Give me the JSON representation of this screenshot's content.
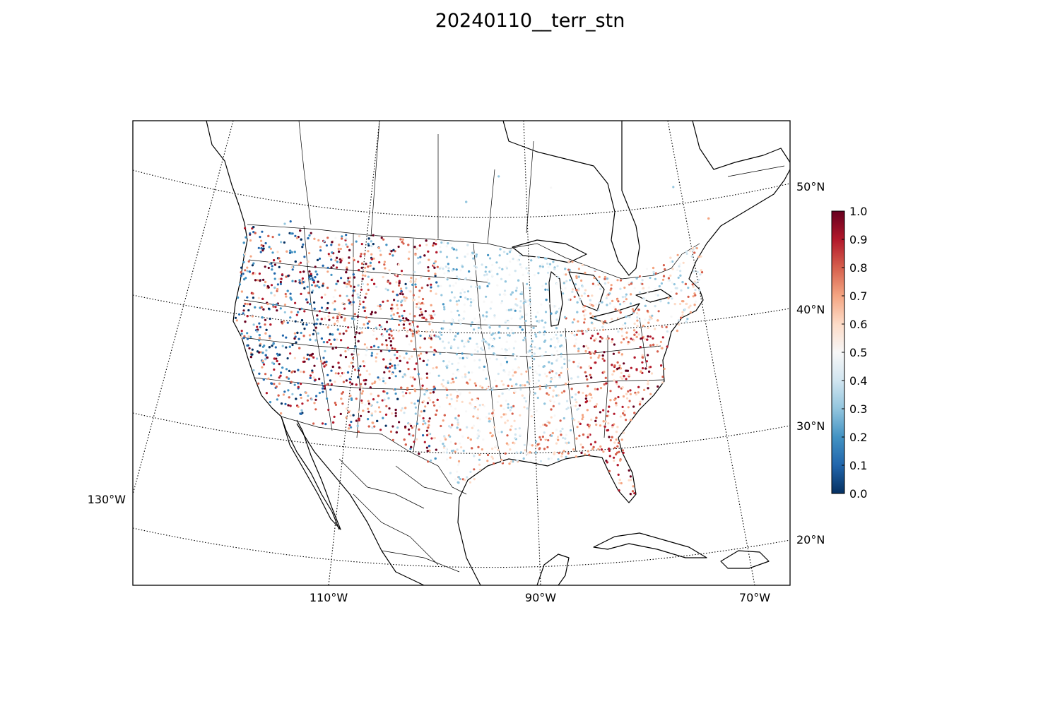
{
  "title": "20240110__terr_stn",
  "lat_labels": [
    "50°N",
    "40°N",
    "30°N",
    "20°N"
  ],
  "lon_labels": [
    "110°W",
    "90°W",
    "70°W"
  ],
  "west_label": "130°W",
  "colorbar": {
    "ticks": [
      "1.0",
      "0.9",
      "0.8",
      "0.7",
      "0.6",
      "0.5",
      "0.4",
      "0.3",
      "0.2",
      "0.1",
      "0.0"
    ],
    "colormap": "RdBu_r",
    "colors": [
      "#053061",
      "#2166ac",
      "#4393c3",
      "#92c5de",
      "#d1e5f0",
      "#f7f7f7",
      "#fddbc7",
      "#f4a582",
      "#d6604d",
      "#b2182b",
      "#67001f"
    ],
    "range": [
      0.0,
      1.0
    ]
  },
  "map": {
    "projection": "Lambert conformal",
    "extent_note": "Continental United States with southern Canada, Mexico and Caribbean",
    "graticule": "dotted"
  }
}
